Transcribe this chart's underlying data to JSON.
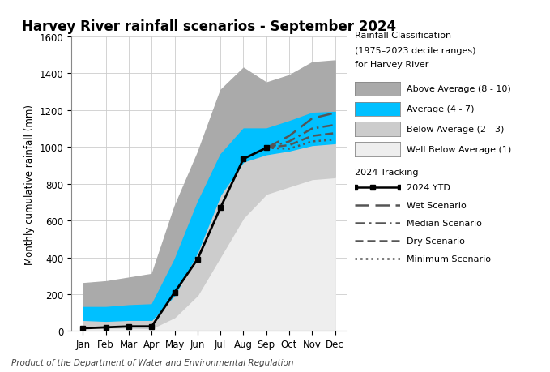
{
  "title": "Harvey River rainfall scenarios - September 2024",
  "ylabel": "Monthly cumulative rainfall (mm)",
  "months": [
    "Jan",
    "Feb",
    "Mar",
    "Apr",
    "May",
    "Jun",
    "Jul",
    "Aug",
    "Sep",
    "Oct",
    "Nov",
    "Dec"
  ],
  "month_indices": [
    0,
    1,
    2,
    3,
    4,
    5,
    6,
    7,
    8,
    9,
    10,
    11
  ],
  "ylim": [
    0,
    1600
  ],
  "yticks": [
    0,
    200,
    400,
    600,
    800,
    1000,
    1200,
    1400,
    1600
  ],
  "above_avg_upper": [
    260,
    270,
    290,
    310,
    680,
    970,
    1310,
    1430,
    1350,
    1390,
    1460,
    1470
  ],
  "above_avg_lower": [
    130,
    130,
    140,
    145,
    390,
    700,
    960,
    1100,
    1100,
    1140,
    1185,
    1190
  ],
  "avg_upper": [
    130,
    130,
    140,
    145,
    390,
    700,
    960,
    1100,
    1100,
    1140,
    1185,
    1190
  ],
  "avg_lower": [
    60,
    55,
    60,
    60,
    195,
    430,
    740,
    920,
    960,
    980,
    1010,
    1020
  ],
  "below_avg_upper": [
    60,
    55,
    60,
    60,
    195,
    430,
    740,
    920,
    960,
    980,
    1010,
    1020
  ],
  "below_avg_lower": [
    18,
    18,
    18,
    15,
    75,
    195,
    405,
    615,
    745,
    785,
    825,
    835
  ],
  "well_below_avg_upper": [
    18,
    18,
    18,
    15,
    75,
    195,
    405,
    615,
    745,
    785,
    825,
    835
  ],
  "well_below_avg_lower": [
    0,
    0,
    0,
    0,
    0,
    0,
    0,
    0,
    0,
    0,
    0,
    0
  ],
  "ytd": [
    15,
    20,
    25,
    25,
    210,
    390,
    670,
    935,
    995,
    null,
    null,
    null
  ],
  "wet_scenario": [
    null,
    null,
    null,
    null,
    null,
    null,
    null,
    null,
    995,
    1060,
    1155,
    1185
  ],
  "median_scenario": [
    null,
    null,
    null,
    null,
    null,
    null,
    null,
    null,
    995,
    1030,
    1100,
    1120
  ],
  "dry_scenario": [
    null,
    null,
    null,
    null,
    null,
    null,
    null,
    null,
    995,
    1010,
    1060,
    1075
  ],
  "min_scenario": [
    null,
    null,
    null,
    null,
    null,
    null,
    null,
    null,
    995,
    990,
    1030,
    1040
  ],
  "color_above": "#aaaaaa",
  "color_avg": "#00c0ff",
  "color_below": "#cccccc",
  "color_well_below": "#eeeeee",
  "color_ytd": "#000000",
  "color_scenarios": "#555555",
  "footer": "Product of the Department of Water and Environmental Regulation",
  "legend_header1": "Rainfall Classification",
  "legend_header2": "(1975–2023 decile ranges)",
  "legend_header3": "for Harvey River",
  "legend_tracking": "2024 Tracking"
}
